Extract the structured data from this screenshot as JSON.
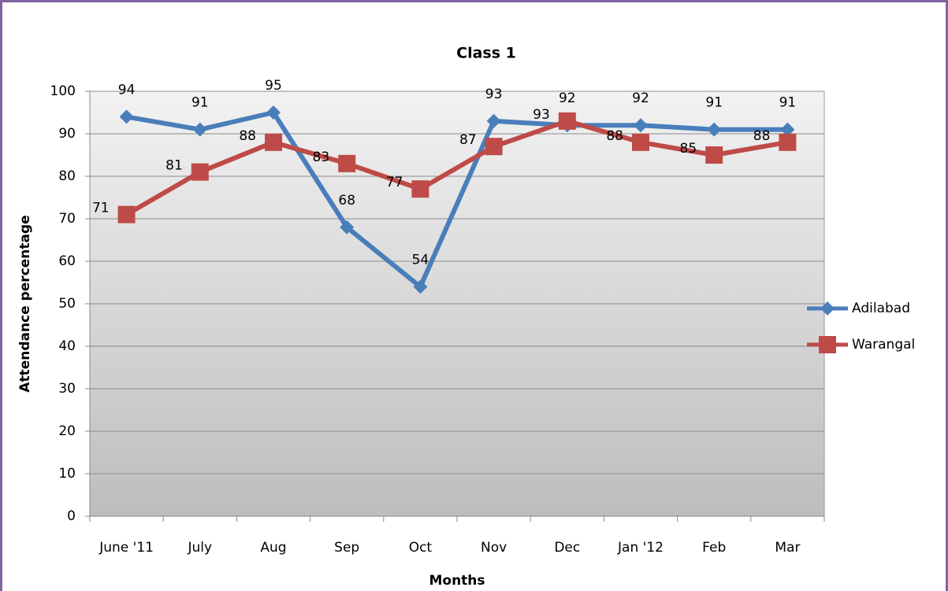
{
  "chart_data": {
    "type": "line",
    "title": "Class 1",
    "x_label": "Months",
    "y_label": "Attendance percentage",
    "categories": [
      "June '11",
      "July",
      "Aug",
      "Sep",
      "Oct",
      "Nov",
      "Dec",
      "Jan '12",
      "Feb",
      "Mar"
    ],
    "series": [
      {
        "name": "Adilabad",
        "color": "#4a7ebb",
        "marker": "diamond",
        "values": [
          94,
          91,
          95,
          68,
          54,
          93,
          92,
          92,
          91,
          91
        ]
      },
      {
        "name": "Warangal",
        "color": "#be4b48",
        "marker": "square",
        "values": [
          71,
          81,
          88,
          83,
          77,
          87,
          93,
          88,
          85,
          88
        ]
      }
    ],
    "ylim": [
      0,
      100
    ],
    "yticks": [
      0,
      10,
      20,
      30,
      40,
      50,
      60,
      70,
      80,
      90,
      100
    ],
    "grid": true,
    "legend": "right"
  }
}
